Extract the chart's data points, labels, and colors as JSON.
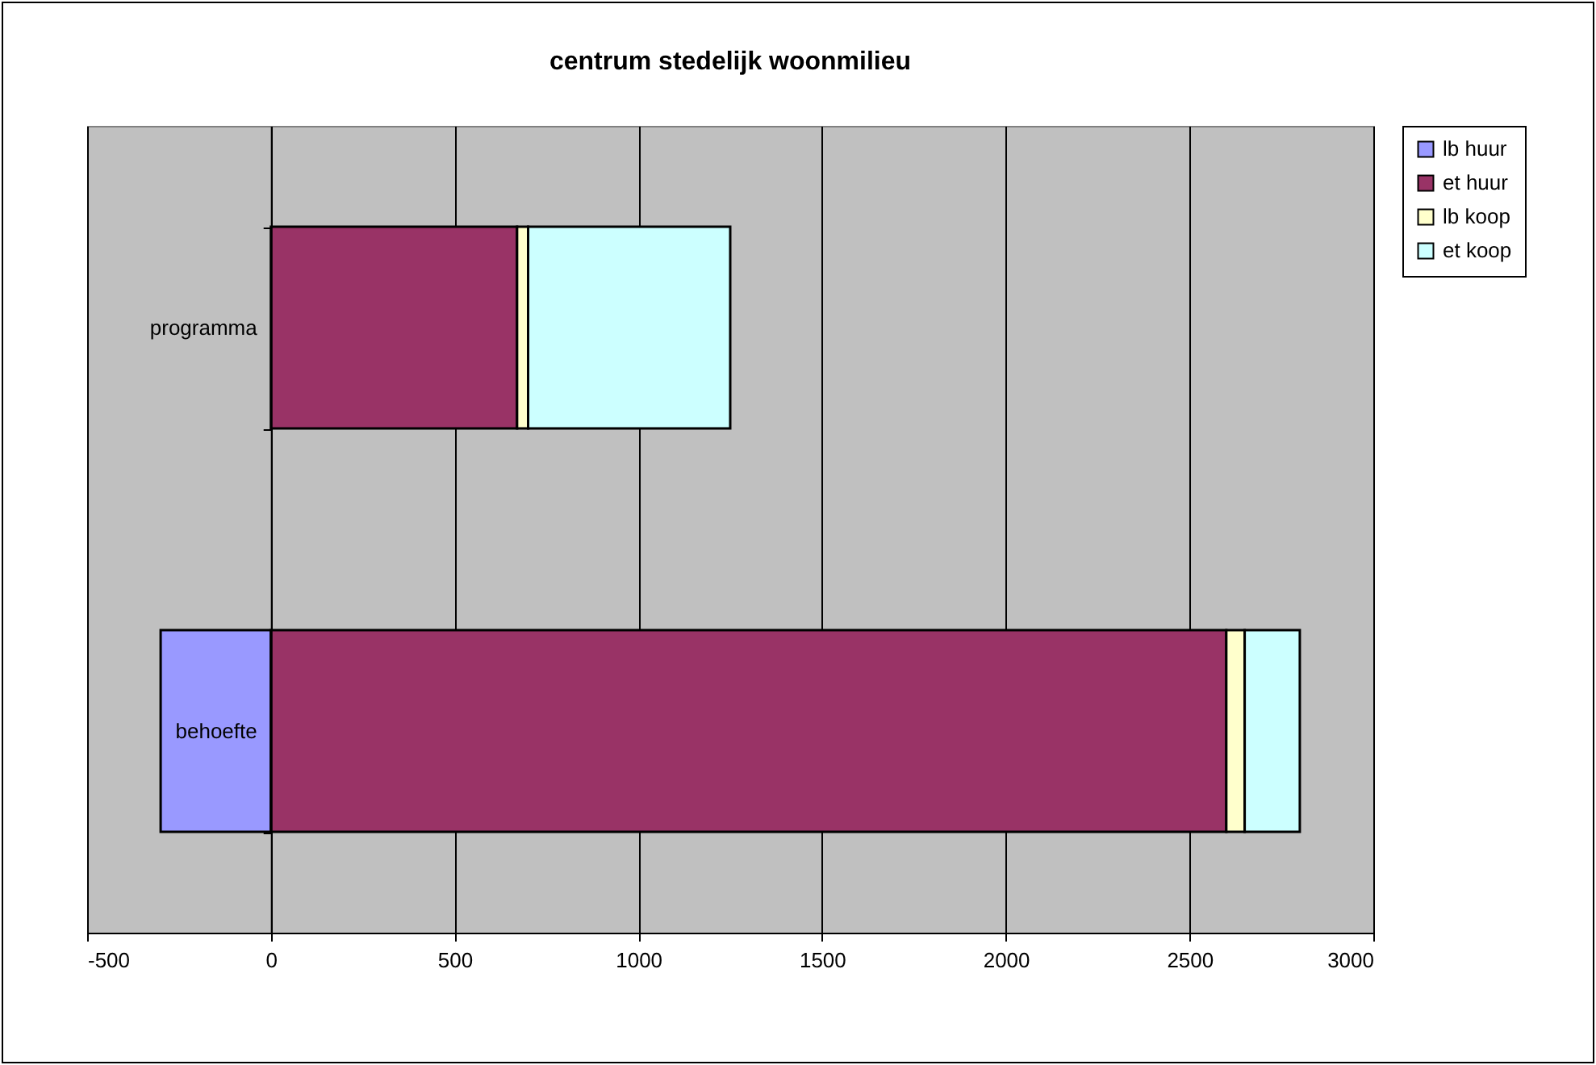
{
  "chart_data": {
    "type": "bar",
    "orientation": "horizontal",
    "stacked": true,
    "title": "centrum stedelijk woonmilieu",
    "categories": [
      "programma",
      "behoefte"
    ],
    "series": [
      {
        "name": "lb huur",
        "color": "#9999ff",
        "values": [
          null,
          -300
        ]
      },
      {
        "name": "et huur",
        "color": "#993366",
        "values": [
          670,
          2600
        ]
      },
      {
        "name": "lb koop",
        "color": "#ffffcc",
        "values": [
          30,
          50
        ]
      },
      {
        "name": "et koop",
        "color": "#ccffff",
        "values": [
          550,
          150
        ]
      }
    ],
    "xlim": [
      -500,
      3000
    ],
    "xticks": [
      -500,
      0,
      500,
      1000,
      1500,
      2000,
      2500,
      3000
    ],
    "grid": "x",
    "legend": "right"
  }
}
